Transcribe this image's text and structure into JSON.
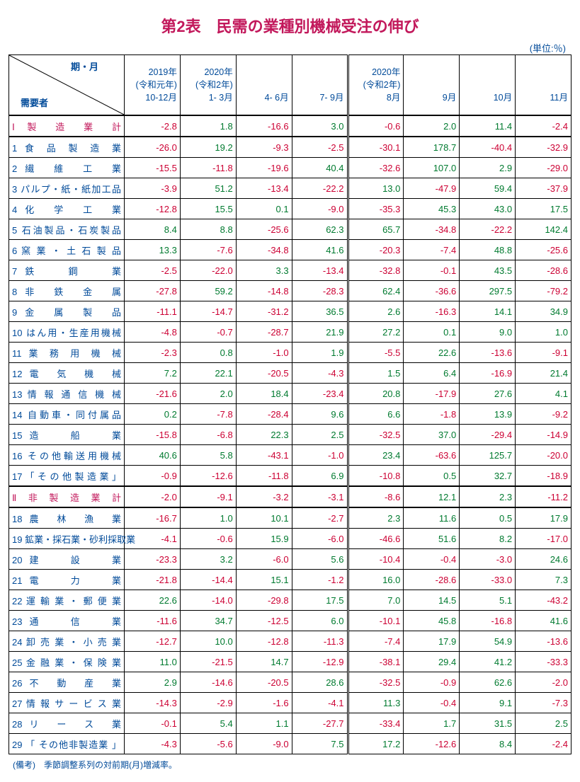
{
  "title_color": "#c2185b",
  "link_color": "#004a99",
  "title": "第2表　民需の業種別機械受注の伸び",
  "unit": "(単位:％)",
  "corner": {
    "period": "期・月",
    "demand": "需要者"
  },
  "headers": [
    "2019年\n(令和元年)\n10-12月",
    "2020年\n(令和2年)\n1- 3月",
    "\n\n4- 6月",
    "\n\n7- 9月",
    "2020年\n(令和2年)\n8月",
    "\n\n9月",
    "\n\n10月",
    "\n\n11月"
  ],
  "rows": [
    {
      "label": "Ⅰ 製　造　業　計",
      "subtotal": true,
      "sepBelow": true,
      "vals": [
        -2.8,
        1.8,
        -16.6,
        3.0,
        -0.6,
        2.0,
        11.4,
        -2.4
      ]
    },
    {
      "label": "1 食 品 製 造 業",
      "vals": [
        -26.0,
        19.2,
        -9.3,
        -2.5,
        -30.1,
        178.7,
        -40.4,
        -32.9
      ]
    },
    {
      "label": "2 繊　維　工　業",
      "vals": [
        -15.5,
        -11.8,
        -19.6,
        40.4,
        -32.6,
        107.0,
        2.9,
        -29.0
      ]
    },
    {
      "label": "3 パルプ・紙・紙加工品",
      "vals": [
        -3.9,
        51.2,
        -13.4,
        -22.2,
        13.0,
        -47.9,
        59.4,
        -37.9
      ]
    },
    {
      "label": "4 化　学　工　業",
      "vals": [
        -12.8,
        15.5,
        0.1,
        -9.0,
        -35.3,
        45.3,
        43.0,
        17.5
      ]
    },
    {
      "label": "5 石油製品・石炭製品",
      "vals": [
        8.4,
        8.8,
        -25.6,
        62.3,
        65.7,
        -34.8,
        -22.2,
        142.4
      ]
    },
    {
      "label": "6 窯 業 ・ 土 石 製 品",
      "vals": [
        13.3,
        -7.6,
        -34.8,
        41.6,
        -20.3,
        -7.4,
        48.8,
        -25.6
      ]
    },
    {
      "label": "7 鉄　　鋼　　業",
      "vals": [
        -2.5,
        -22.0,
        3.3,
        -13.4,
        -32.8,
        -0.1,
        43.5,
        -28.6
      ]
    },
    {
      "label": "8 非　鉄　金　属",
      "vals": [
        -27.8,
        59.2,
        -14.8,
        -28.3,
        62.4,
        -36.6,
        297.5,
        -79.2
      ]
    },
    {
      "label": "9 金　属　製　品",
      "vals": [
        -11.1,
        -14.7,
        -31.2,
        36.5,
        2.6,
        -16.3,
        14.1,
        34.9
      ]
    },
    {
      "label": "10 はん用・生産用機械",
      "vals": [
        -4.8,
        -0.7,
        -28.7,
        21.9,
        27.2,
        0.1,
        9.0,
        1.0
      ]
    },
    {
      "label": "11 業 務 用 機 械",
      "vals": [
        -2.3,
        0.8,
        -1.0,
        1.9,
        -5.5,
        22.6,
        -13.6,
        -9.1
      ]
    },
    {
      "label": "12 電　気　機　械",
      "vals": [
        7.2,
        22.1,
        -20.5,
        -4.3,
        1.5,
        6.4,
        -16.9,
        21.4
      ]
    },
    {
      "label": "13 情 報 通 信 機 械",
      "vals": [
        -21.6,
        2.0,
        18.4,
        -23.4,
        20.8,
        -17.9,
        27.6,
        4.1
      ]
    },
    {
      "label": "14 自動車・同付属品",
      "vals": [
        0.2,
        -7.8,
        -28.4,
        9.6,
        6.6,
        -1.8,
        13.9,
        -9.2
      ]
    },
    {
      "label": "15 造　　船　　業",
      "vals": [
        -15.8,
        -6.8,
        22.3,
        2.5,
        -32.5,
        37.0,
        -29.4,
        -14.9
      ]
    },
    {
      "label": "16 その他輸送用機械",
      "vals": [
        40.6,
        5.8,
        -43.1,
        -1.0,
        23.4,
        -63.6,
        125.7,
        -20.0
      ]
    },
    {
      "label": "17 「 そ の 他 製 造 業 」",
      "sepBelow": true,
      "vals": [
        -0.9,
        -12.6,
        -11.8,
        6.9,
        -10.8,
        0.5,
        32.7,
        -18.9
      ]
    },
    {
      "label": "Ⅱ 非 製 造 業 計",
      "subtotal": true,
      "sepBelow": true,
      "vals": [
        -2.0,
        -9.1,
        -3.2,
        -3.1,
        -8.6,
        12.1,
        2.3,
        -11.2
      ]
    },
    {
      "label": "18 農　林　漁　業",
      "vals": [
        -16.7,
        1.0,
        10.1,
        -2.7,
        2.3,
        11.6,
        0.5,
        17.9
      ]
    },
    {
      "label": "19 鉱業・採石業・砂利採取業",
      "vals": [
        -4.1,
        -0.6,
        15.9,
        -6.0,
        -46.6,
        51.6,
        8.2,
        -17.0
      ]
    },
    {
      "label": "20 建　　設　　業",
      "vals": [
        -23.3,
        3.2,
        -6.0,
        5.6,
        -10.4,
        -0.4,
        -3.0,
        24.6
      ]
    },
    {
      "label": "21 電　　力　　業",
      "vals": [
        -21.8,
        -14.4,
        15.1,
        -1.2,
        16.0,
        -28.6,
        -33.0,
        7.3
      ]
    },
    {
      "label": "22 運 輸 業 ・ 郵 便 業",
      "vals": [
        22.6,
        -14.0,
        -29.8,
        17.5,
        7.0,
        14.5,
        5.1,
        -43.2
      ]
    },
    {
      "label": "23 通　　信　　業",
      "vals": [
        -11.6,
        34.7,
        -12.5,
        6.0,
        -10.1,
        45.8,
        -16.8,
        41.6
      ]
    },
    {
      "label": "24 卸 売 業 ・ 小 売 業",
      "vals": [
        -12.7,
        10.0,
        -12.8,
        -11.3,
        -7.4,
        17.9,
        54.9,
        -13.6
      ]
    },
    {
      "label": "25 金 融 業 ・ 保 険 業",
      "vals": [
        11.0,
        -21.5,
        14.7,
        -12.9,
        -38.1,
        29.4,
        41.2,
        -33.3
      ]
    },
    {
      "label": "26 不　動　産　業",
      "vals": [
        2.9,
        -14.6,
        -20.5,
        28.6,
        -32.5,
        -0.9,
        62.6,
        -2.0
      ]
    },
    {
      "label": "27 情 報 サ ー ビ ス 業",
      "vals": [
        -14.3,
        -2.9,
        -1.6,
        -4.1,
        11.3,
        -0.4,
        9.1,
        -7.3
      ]
    },
    {
      "label": "28 リ　ー　ス　業",
      "vals": [
        -0.1,
        5.4,
        1.1,
        -27.7,
        -33.4,
        1.7,
        31.5,
        2.5
      ]
    },
    {
      "label": "29 「 その他非製造業 」",
      "vals": [
        -4.3,
        -5.6,
        -9.0,
        7.5,
        17.2,
        -12.6,
        8.4,
        -2.4
      ]
    }
  ],
  "footnote": "(備考)　季節調整系列の対前期(月)増減率。"
}
